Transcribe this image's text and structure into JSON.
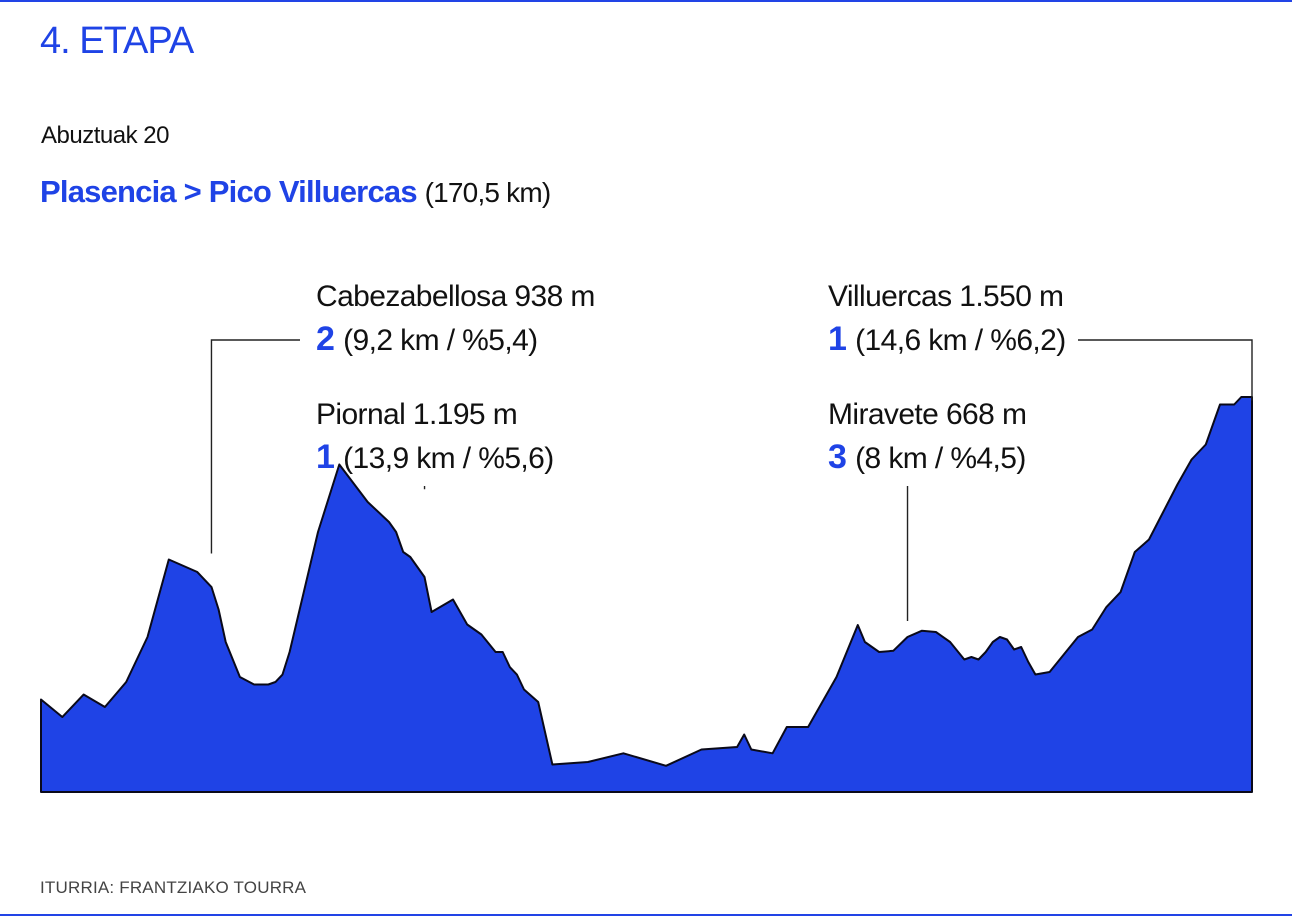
{
  "header": {
    "title": "4. ETAPA",
    "date": "Abuztuak 20",
    "route": "Plasencia > Pico Villuercas",
    "distance": "(170,5 km)"
  },
  "source": "ITURRIA: FRANTZIAKO TOURRA",
  "colors": {
    "accent": "#1f43e6",
    "profile_fill": "#1f43e6",
    "text": "#111111"
  },
  "chart_data": {
    "type": "area",
    "x": [
      0,
      3,
      6,
      9,
      12,
      15,
      18,
      22,
      24,
      25,
      26,
      28,
      30,
      32,
      33,
      34,
      35,
      37,
      39,
      42,
      46,
      49,
      50,
      51,
      52,
      54,
      55,
      58,
      60,
      62,
      64,
      65,
      66,
      67,
      68,
      70,
      72,
      77,
      82,
      88,
      93,
      98,
      99,
      100,
      103,
      105,
      108,
      112,
      115,
      116,
      118,
      120,
      122,
      124,
      126,
      128,
      130,
      131,
      132,
      133,
      134,
      135,
      136,
      137,
      138,
      139,
      140,
      142,
      144,
      146,
      148,
      150,
      152,
      154,
      156,
      158,
      160,
      162,
      164,
      166,
      168,
      169,
      170.5
    ],
    "y": [
      370,
      300,
      390,
      340,
      440,
      620,
      930,
      880,
      820,
      730,
      600,
      460,
      430,
      430,
      440,
      470,
      560,
      800,
      1040,
      1310,
      1160,
      1080,
      1040,
      960,
      940,
      860,
      720,
      770,
      670,
      630,
      560,
      560,
      500,
      470,
      410,
      360,
      110,
      120,
      155,
      105,
      170,
      180,
      230,
      170,
      155,
      260,
      260,
      460,
      668,
      600,
      560,
      565,
      620,
      645,
      640,
      600,
      530,
      540,
      530,
      560,
      600,
      620,
      610,
      570,
      580,
      520,
      470,
      480,
      550,
      620,
      650,
      740,
      800,
      960,
      1010,
      1120,
      1230,
      1330,
      1390,
      1550,
      1550,
      1580,
      1580
    ],
    "ylim": [
      0,
      1600
    ],
    "xlim": [
      0,
      170.5
    ],
    "grid": false,
    "annotations": [
      {
        "name": "Cabezabellosa 938 m",
        "cat": "2",
        "detail": "(9,2 km / %5,4)",
        "x": 24,
        "y": 938
      },
      {
        "name": "Piornal 1.195 m",
        "cat": "1",
        "detail": "(13,9 km / %5,6)",
        "x": 54,
        "y": 1195
      },
      {
        "name": "Miravete 668 m",
        "cat": "3",
        "detail": "(8 km / %4,5)",
        "x": 122,
        "y": 668
      },
      {
        "name": "Villuercas 1.550 m",
        "cat": "1",
        "detail": "(14,6 km / %6,2)",
        "x": 170.5,
        "y": 1550
      }
    ]
  }
}
